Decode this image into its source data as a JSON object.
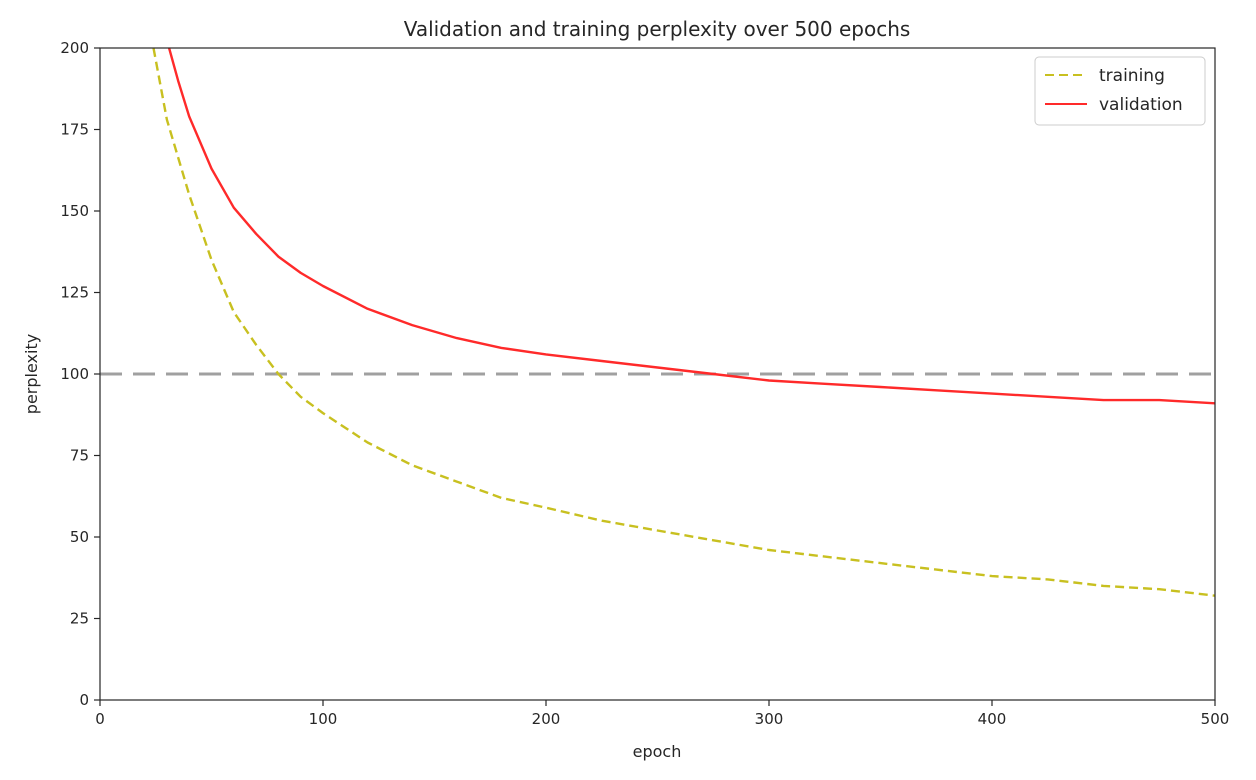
{
  "chart_data": {
    "type": "line",
    "title": "Validation and training perplexity over 500 epochs",
    "xlabel": "epoch",
    "ylabel": "perplexity",
    "xlim": [
      0,
      500
    ],
    "ylim": [
      0,
      200
    ],
    "xticks": [
      0,
      100,
      200,
      300,
      400,
      500
    ],
    "yticks": [
      0,
      25,
      50,
      75,
      100,
      125,
      150,
      175,
      200
    ],
    "grid": false,
    "legend_position": "top-right",
    "reference_line": {
      "y": 100,
      "color": "#a0a0a0",
      "style": "dashed"
    },
    "series": [
      {
        "name": "training",
        "color": "#c8c020",
        "style": "dashed",
        "x": [
          24,
          30,
          40,
          50,
          60,
          70,
          80,
          90,
          100,
          120,
          140,
          160,
          180,
          200,
          225,
          250,
          275,
          300,
          325,
          350,
          375,
          400,
          425,
          450,
          475,
          500
        ],
        "y": [
          200,
          178,
          155,
          135,
          119,
          109,
          100,
          93,
          88,
          79,
          72,
          67,
          62,
          59,
          55,
          52,
          49,
          46,
          44,
          42,
          40,
          38,
          37,
          35,
          34,
          32
        ]
      },
      {
        "name": "validation",
        "color": "#ff2a2a",
        "style": "solid",
        "x": [
          31,
          35,
          40,
          50,
          60,
          70,
          80,
          90,
          100,
          120,
          140,
          160,
          180,
          200,
          225,
          250,
          275,
          300,
          325,
          350,
          375,
          400,
          425,
          450,
          475,
          500
        ],
        "y": [
          200,
          190,
          179,
          163,
          151,
          143,
          136,
          131,
          127,
          120,
          115,
          111,
          108,
          106,
          104,
          102,
          100,
          98,
          97,
          96,
          95,
          94,
          93,
          92,
          92,
          91
        ]
      }
    ]
  }
}
